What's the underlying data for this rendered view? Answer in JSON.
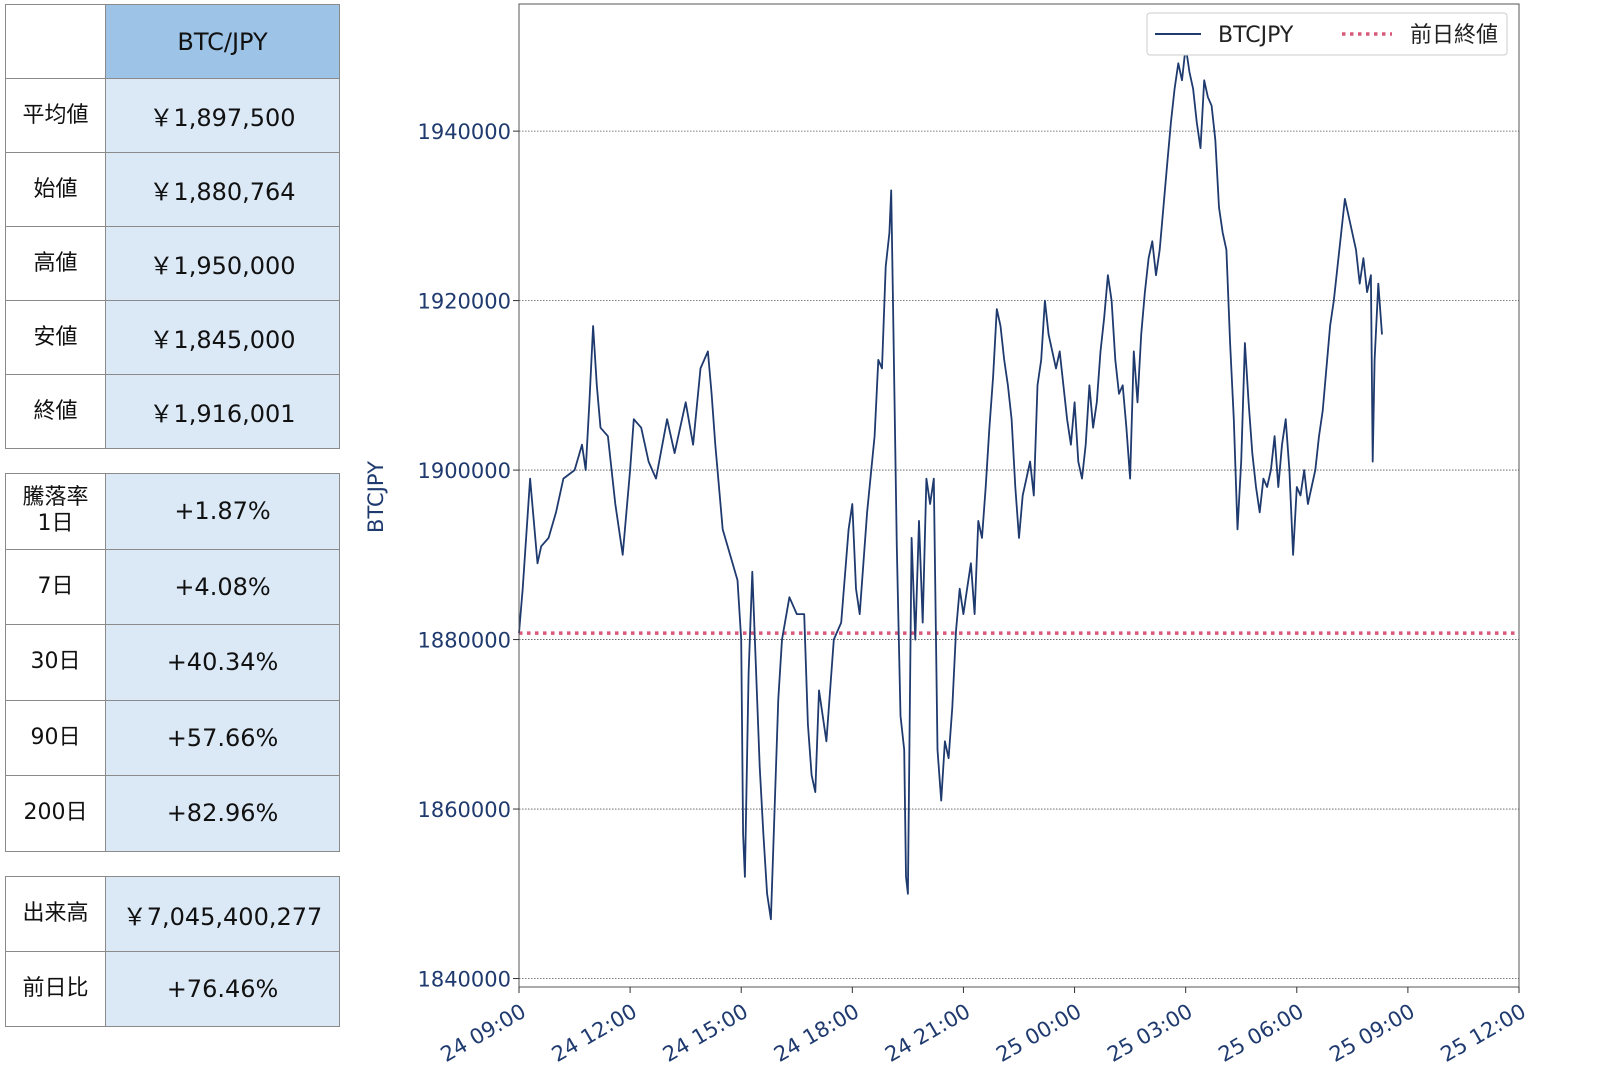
{
  "table": {
    "header": "BTC/JPY",
    "prices": [
      {
        "label": "平均値",
        "value": "￥1,897,500"
      },
      {
        "label": "始値",
        "value": "￥1,880,764"
      },
      {
        "label": "高値",
        "value": "￥1,950,000"
      },
      {
        "label": "安値",
        "value": "￥1,845,000"
      },
      {
        "label": "終値",
        "value": "￥1,916,001"
      }
    ],
    "change": {
      "label_line1": "騰落率",
      "label_line2": "1日",
      "value_1d": "+1.87%",
      "rows": [
        {
          "label": "7日",
          "value": "+4.08%"
        },
        {
          "label": "30日",
          "value": "+40.34%"
        },
        {
          "label": "90日",
          "value": "+57.66%"
        },
        {
          "label": "200日",
          "value": "+82.96%"
        }
      ]
    },
    "volume": [
      {
        "label": "出来高",
        "value": "￥7,045,400,277"
      },
      {
        "label": "前日比",
        "value": "+76.46%"
      }
    ]
  },
  "colors": {
    "line": "#1f3a6e",
    "ref": "#d9597a",
    "axis": "#1f3a6e",
    "grid": "#555555"
  },
  "chart_data": {
    "type": "line",
    "title": "",
    "ylabel": "BTCJPY",
    "xlabel": "",
    "legend": {
      "series_label": "BTCJPY",
      "ref_label": "前日終値",
      "position": "top-right"
    },
    "xlim_hours": [
      0,
      27
    ],
    "ylim": [
      1839000,
      1955000
    ],
    "yticks": [
      1840000,
      1860000,
      1880000,
      1900000,
      1920000,
      1940000
    ],
    "ytick_labels": [
      "1840000",
      "1860000",
      "1880000",
      "1900000",
      "1920000",
      "1940000"
    ],
    "xticks_hours": [
      0,
      3,
      6,
      9,
      12,
      15,
      18,
      21,
      24,
      27
    ],
    "xtick_labels": [
      "24 09:00",
      "24 12:00",
      "24 15:00",
      "24 18:00",
      "24 21:00",
      "25 00:00",
      "25 03:00",
      "25 06:00",
      "25 09:00",
      "25 12:00"
    ],
    "reference_value": 1880764,
    "series": [
      {
        "name": "BTCJPY",
        "points": [
          [
            0.0,
            1880764
          ],
          [
            0.1,
            1886000
          ],
          [
            0.3,
            1899000
          ],
          [
            0.5,
            1889000
          ],
          [
            0.6,
            1891000
          ],
          [
            0.8,
            1892000
          ],
          [
            1.0,
            1895000
          ],
          [
            1.2,
            1899000
          ],
          [
            1.5,
            1900000
          ],
          [
            1.7,
            1903000
          ],
          [
            1.8,
            1900000
          ],
          [
            1.9,
            1908000
          ],
          [
            2.0,
            1917000
          ],
          [
            2.1,
            1910000
          ],
          [
            2.2,
            1905000
          ],
          [
            2.4,
            1904000
          ],
          [
            2.6,
            1896000
          ],
          [
            2.8,
            1890000
          ],
          [
            2.9,
            1895000
          ],
          [
            3.0,
            1900000
          ],
          [
            3.1,
            1906000
          ],
          [
            3.3,
            1905000
          ],
          [
            3.5,
            1901000
          ],
          [
            3.7,
            1899000
          ],
          [
            4.0,
            1906000
          ],
          [
            4.2,
            1902000
          ],
          [
            4.5,
            1908000
          ],
          [
            4.7,
            1903000
          ],
          [
            4.9,
            1912000
          ],
          [
            5.1,
            1914000
          ],
          [
            5.2,
            1909000
          ],
          [
            5.3,
            1903000
          ],
          [
            5.5,
            1893000
          ],
          [
            5.7,
            1890000
          ],
          [
            5.9,
            1887000
          ],
          [
            6.0,
            1880000
          ],
          [
            6.05,
            1857000
          ],
          [
            6.1,
            1852000
          ],
          [
            6.2,
            1876000
          ],
          [
            6.3,
            1888000
          ],
          [
            6.5,
            1865000
          ],
          [
            6.6,
            1857000
          ],
          [
            6.7,
            1850000
          ],
          [
            6.8,
            1847000
          ],
          [
            6.9,
            1860000
          ],
          [
            7.0,
            1873000
          ],
          [
            7.1,
            1880000
          ],
          [
            7.3,
            1885000
          ],
          [
            7.5,
            1883000
          ],
          [
            7.7,
            1883000
          ],
          [
            7.8,
            1870000
          ],
          [
            7.9,
            1864000
          ],
          [
            8.0,
            1862000
          ],
          [
            8.1,
            1874000
          ],
          [
            8.2,
            1871000
          ],
          [
            8.3,
            1868000
          ],
          [
            8.5,
            1880000
          ],
          [
            8.7,
            1882000
          ],
          [
            8.9,
            1893000
          ],
          [
            9.0,
            1896000
          ],
          [
            9.1,
            1886000
          ],
          [
            9.2,
            1883000
          ],
          [
            9.4,
            1895000
          ],
          [
            9.6,
            1904000
          ],
          [
            9.7,
            1913000
          ],
          [
            9.8,
            1912000
          ],
          [
            9.9,
            1924000
          ],
          [
            10.0,
            1928000
          ],
          [
            10.05,
            1933000
          ],
          [
            10.1,
            1919000
          ],
          [
            10.2,
            1891000
          ],
          [
            10.3,
            1871000
          ],
          [
            10.4,
            1867000
          ],
          [
            10.45,
            1852000
          ],
          [
            10.5,
            1850000
          ],
          [
            10.6,
            1892000
          ],
          [
            10.7,
            1880000
          ],
          [
            10.8,
            1894000
          ],
          [
            10.9,
            1882000
          ],
          [
            11.0,
            1899000
          ],
          [
            11.1,
            1896000
          ],
          [
            11.2,
            1899000
          ],
          [
            11.3,
            1867000
          ],
          [
            11.4,
            1861000
          ],
          [
            11.5,
            1868000
          ],
          [
            11.6,
            1866000
          ],
          [
            11.7,
            1872000
          ],
          [
            11.8,
            1881000
          ],
          [
            11.9,
            1886000
          ],
          [
            12.0,
            1883000
          ],
          [
            12.1,
            1886000
          ],
          [
            12.2,
            1889000
          ],
          [
            12.3,
            1883000
          ],
          [
            12.4,
            1894000
          ],
          [
            12.5,
            1892000
          ],
          [
            12.6,
            1898000
          ],
          [
            12.7,
            1905000
          ],
          [
            12.8,
            1911000
          ],
          [
            12.9,
            1919000
          ],
          [
            13.0,
            1917000
          ],
          [
            13.1,
            1913000
          ],
          [
            13.2,
            1910000
          ],
          [
            13.3,
            1906000
          ],
          [
            13.4,
            1898000
          ],
          [
            13.5,
            1892000
          ],
          [
            13.6,
            1897000
          ],
          [
            13.7,
            1899000
          ],
          [
            13.8,
            1901000
          ],
          [
            13.9,
            1897000
          ],
          [
            14.0,
            1910000
          ],
          [
            14.1,
            1913000
          ],
          [
            14.2,
            1920000
          ],
          [
            14.3,
            1916000
          ],
          [
            14.4,
            1914000
          ],
          [
            14.5,
            1912000
          ],
          [
            14.6,
            1914000
          ],
          [
            14.7,
            1910000
          ],
          [
            14.8,
            1906000
          ],
          [
            14.9,
            1903000
          ],
          [
            15.0,
            1908000
          ],
          [
            15.1,
            1901000
          ],
          [
            15.2,
            1899000
          ],
          [
            15.3,
            1903000
          ],
          [
            15.4,
            1910000
          ],
          [
            15.5,
            1905000
          ],
          [
            15.6,
            1908000
          ],
          [
            15.7,
            1914000
          ],
          [
            15.8,
            1918000
          ],
          [
            15.9,
            1923000
          ],
          [
            16.0,
            1920000
          ],
          [
            16.1,
            1913000
          ],
          [
            16.2,
            1909000
          ],
          [
            16.3,
            1910000
          ],
          [
            16.4,
            1905000
          ],
          [
            16.5,
            1899000
          ],
          [
            16.6,
            1914000
          ],
          [
            16.7,
            1908000
          ],
          [
            16.8,
            1916000
          ],
          [
            16.9,
            1921000
          ],
          [
            17.0,
            1925000
          ],
          [
            17.1,
            1927000
          ],
          [
            17.2,
            1923000
          ],
          [
            17.3,
            1926000
          ],
          [
            17.4,
            1931000
          ],
          [
            17.5,
            1936000
          ],
          [
            17.6,
            1941000
          ],
          [
            17.7,
            1945000
          ],
          [
            17.8,
            1948000
          ],
          [
            17.9,
            1946000
          ],
          [
            18.0,
            1950000
          ],
          [
            18.1,
            1947000
          ],
          [
            18.2,
            1945000
          ],
          [
            18.3,
            1941000
          ],
          [
            18.4,
            1938000
          ],
          [
            18.5,
            1946000
          ],
          [
            18.6,
            1944000
          ],
          [
            18.7,
            1943000
          ],
          [
            18.8,
            1939000
          ],
          [
            18.9,
            1931000
          ],
          [
            19.0,
            1928000
          ],
          [
            19.1,
            1926000
          ],
          [
            19.2,
            1915000
          ],
          [
            19.3,
            1906000
          ],
          [
            19.4,
            1893000
          ],
          [
            19.5,
            1901000
          ],
          [
            19.6,
            1915000
          ],
          [
            19.7,
            1908000
          ],
          [
            19.8,
            1902000
          ],
          [
            19.9,
            1898000
          ],
          [
            20.0,
            1895000
          ],
          [
            20.1,
            1899000
          ],
          [
            20.2,
            1898000
          ],
          [
            20.3,
            1900000
          ],
          [
            20.4,
            1904000
          ],
          [
            20.5,
            1898000
          ],
          [
            20.6,
            1903000
          ],
          [
            20.7,
            1906000
          ],
          [
            20.8,
            1900000
          ],
          [
            20.9,
            1890000
          ],
          [
            21.0,
            1898000
          ],
          [
            21.1,
            1897000
          ],
          [
            21.2,
            1900000
          ],
          [
            21.3,
            1896000
          ],
          [
            21.4,
            1898000
          ],
          [
            21.5,
            1900000
          ],
          [
            21.6,
            1904000
          ],
          [
            21.7,
            1907000
          ],
          [
            21.8,
            1912000
          ],
          [
            21.9,
            1917000
          ],
          [
            22.0,
            1920000
          ],
          [
            22.1,
            1924000
          ],
          [
            22.2,
            1928000
          ],
          [
            22.3,
            1932000
          ],
          [
            22.4,
            1930000
          ],
          [
            22.5,
            1928000
          ],
          [
            22.6,
            1926000
          ],
          [
            22.7,
            1922000
          ],
          [
            22.8,
            1925000
          ],
          [
            22.9,
            1921000
          ],
          [
            23.0,
            1923000
          ],
          [
            23.05,
            1901000
          ],
          [
            23.1,
            1913000
          ],
          [
            23.2,
            1922000
          ],
          [
            23.3,
            1916000
          ]
        ]
      }
    ]
  }
}
